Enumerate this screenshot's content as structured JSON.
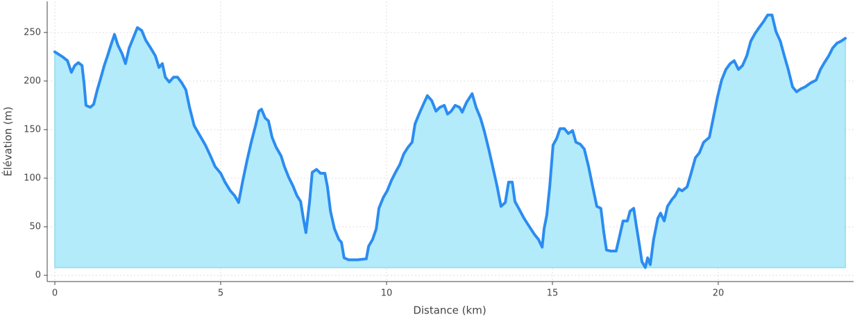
{
  "chart_data": {
    "type": "area",
    "x_label": "Distance (km)",
    "y_label": "Élévation (m)",
    "x": [
      0,
      0.23,
      0.38,
      0.5,
      0.6,
      0.71,
      0.82,
      0.88,
      0.94,
      1.07,
      1.17,
      1.28,
      1.4,
      1.49,
      1.59,
      1.69,
      1.8,
      1.9,
      2.03,
      2.13,
      2.24,
      2.36,
      2.49,
      2.62,
      2.74,
      2.89,
      3.03,
      3.14,
      3.24,
      3.33,
      3.45,
      3.58,
      3.7,
      3.83,
      3.95,
      4.06,
      4.2,
      4.37,
      4.54,
      4.69,
      4.83,
      5.0,
      5.13,
      5.29,
      5.42,
      5.54,
      5.67,
      5.8,
      5.92,
      6.05,
      6.15,
      6.23,
      6.34,
      6.44,
      6.55,
      6.67,
      6.82,
      6.92,
      7.05,
      7.18,
      7.3,
      7.41,
      7.49,
      7.57,
      7.68,
      7.76,
      7.89,
      8.01,
      8.14,
      8.22,
      8.31,
      8.43,
      8.56,
      8.64,
      8.72,
      8.85,
      9.12,
      9.39,
      9.46,
      9.58,
      9.69,
      9.77,
      9.9,
      10.02,
      10.15,
      10.27,
      10.4,
      10.52,
      10.65,
      10.77,
      10.86,
      10.98,
      11.11,
      11.23,
      11.36,
      11.49,
      11.61,
      11.74,
      11.84,
      11.95,
      12.07,
      12.2,
      12.28,
      12.41,
      12.58,
      12.7,
      12.83,
      12.95,
      13.08,
      13.2,
      13.33,
      13.45,
      13.58,
      13.68,
      13.79,
      13.87,
      14.0,
      14.14,
      14.29,
      14.46,
      14.58,
      14.69,
      14.75,
      14.83,
      14.92,
      15.02,
      15.13,
      15.23,
      15.36,
      15.48,
      15.61,
      15.71,
      15.84,
      15.96,
      16.09,
      16.21,
      16.34,
      16.46,
      16.55,
      16.63,
      16.76,
      16.92,
      17.03,
      17.13,
      17.26,
      17.34,
      17.45,
      17.53,
      17.62,
      17.7,
      17.8,
      17.87,
      17.95,
      18.05,
      18.18,
      18.26,
      18.37,
      18.47,
      18.6,
      18.7,
      18.81,
      18.91,
      19.06,
      19.18,
      19.31,
      19.43,
      19.56,
      19.73,
      19.85,
      19.98,
      20.1,
      20.23,
      20.36,
      20.48,
      20.61,
      20.73,
      20.86,
      20.98,
      21.11,
      21.23,
      21.36,
      21.49,
      21.62,
      21.74,
      21.87,
      21.99,
      22.11,
      22.24,
      22.36,
      22.49,
      22.62,
      22.78,
      22.95,
      23.08,
      23.2,
      23.33,
      23.45,
      23.58,
      23.7,
      23.83
    ],
    "series": [
      {
        "color": "#2b8cf0",
        "fill": "#b3ebfa",
        "values": [
          230,
          225,
          221,
          209,
          216,
          219,
          216,
          198,
          175,
          173,
          176,
          191,
          205,
          216,
          226,
          237,
          248,
          237,
          228,
          218,
          234,
          244,
          255,
          252,
          242,
          234,
          226,
          214,
          218,
          204,
          199,
          204,
          204,
          198,
          191,
          173,
          154,
          144,
          134,
          123,
          112,
          105,
          96,
          87,
          82,
          75,
          98,
          119,
          137,
          154,
          169,
          171,
          162,
          159,
          142,
          132,
          123,
          112,
          101,
          92,
          82,
          76,
          59,
          44,
          76,
          106,
          109,
          105,
          105,
          91,
          66,
          48,
          37,
          34,
          18,
          16,
          16,
          17,
          30,
          37,
          48,
          69,
          80,
          87,
          98,
          106,
          114,
          125,
          132,
          137,
          156,
          166,
          176,
          185,
          180,
          169,
          173,
          175,
          166,
          169,
          175,
          173,
          168,
          178,
          187,
          173,
          162,
          148,
          130,
          112,
          92,
          71,
          75,
          96,
          96,
          76,
          68,
          59,
          51,
          42,
          37,
          29,
          48,
          62,
          92,
          134,
          141,
          151,
          151,
          146,
          149,
          137,
          135,
          130,
          112,
          92,
          71,
          69,
          44,
          26,
          25,
          25,
          41,
          56,
          56,
          66,
          69,
          51,
          32,
          14,
          8,
          18,
          11,
          37,
          59,
          64,
          56,
          71,
          78,
          82,
          89,
          87,
          91,
          105,
          121,
          126,
          137,
          142,
          162,
          184,
          201,
          212,
          218,
          221,
          212,
          216,
          226,
          241,
          249,
          255,
          261,
          268,
          268,
          251,
          241,
          226,
          212,
          194,
          189,
          192,
          194,
          198,
          201,
          212,
          219,
          226,
          234,
          239,
          241,
          244
        ]
      }
    ],
    "xlim": [
      -0.23,
      24.08
    ],
    "ylim": [
      -6.4,
      282
    ],
    "xticks": [
      0,
      5,
      10,
      15,
      20
    ],
    "yticks": [
      0,
      50,
      100,
      150,
      200,
      250
    ],
    "grid": true
  }
}
